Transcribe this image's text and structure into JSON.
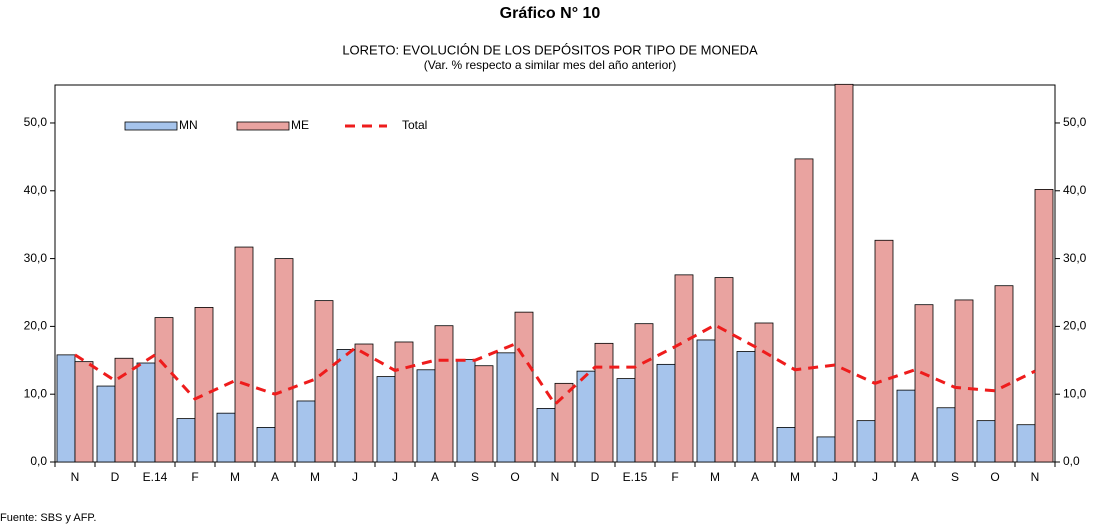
{
  "chart_data": {
    "type": "bar",
    "title": "Gráfico N° 10",
    "subtitle": "LORETO: EVOLUCIÓN DE LOS DEPÓSITOS POR TIPO DE MONEDA",
    "subtitle2": "(Var. % respecto a similar mes del año anterior)",
    "source": "Fuente: SBS y AFP.",
    "categories": [
      "N",
      "D",
      "E.14",
      "F",
      "M",
      "A",
      "M",
      "J",
      "J",
      "A",
      "S",
      "O",
      "N",
      "D",
      "E.15",
      "F",
      "M",
      "A",
      "M",
      "J",
      "J",
      "A",
      "S",
      "O",
      "N"
    ],
    "series": [
      {
        "name": "MN",
        "type": "bar",
        "color": "#a6c4ec",
        "values": [
          15.8,
          11.2,
          14.6,
          6.4,
          7.2,
          5.1,
          9.0,
          16.6,
          12.6,
          13.6,
          15.1,
          16.1,
          7.9,
          13.4,
          12.3,
          14.4,
          18.0,
          16.3,
          5.1,
          3.7,
          6.1,
          10.6,
          8.0,
          6.1,
          5.5
        ]
      },
      {
        "name": "ME",
        "type": "bar",
        "color": "#e9a3a0",
        "values": [
          14.8,
          15.3,
          21.3,
          22.8,
          31.7,
          30.0,
          23.8,
          17.4,
          17.7,
          20.1,
          14.2,
          22.1,
          11.6,
          17.5,
          20.4,
          27.6,
          27.2,
          20.5,
          44.7,
          55.7,
          32.7,
          23.2,
          23.9,
          26.0,
          40.2
        ]
      },
      {
        "name": "Total",
        "type": "line",
        "color": "#ee1c1c",
        "values": [
          15.8,
          12.0,
          15.8,
          9.3,
          12.0,
          10.0,
          12.2,
          16.8,
          13.5,
          15.0,
          15.0,
          17.4,
          8.5,
          14.0,
          14.0,
          17.0,
          20.2,
          17.0,
          13.6,
          14.3,
          11.6,
          13.6,
          11.0,
          10.5,
          13.4
        ]
      }
    ],
    "ylim": [
      0,
      55.6
    ],
    "yticks": [
      {
        "value": 0,
        "label": "0,0"
      },
      {
        "value": 10,
        "label": "10,0"
      },
      {
        "value": 20,
        "label": "20,0"
      },
      {
        "value": 30,
        "label": "30,0"
      },
      {
        "value": 40,
        "label": "40,0"
      },
      {
        "value": 50,
        "label": "50,0"
      }
    ],
    "legend": "top-left"
  }
}
